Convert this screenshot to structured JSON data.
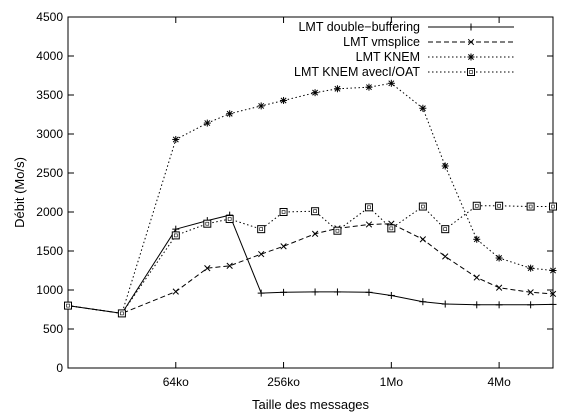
{
  "chart_data": {
    "type": "line",
    "title": "",
    "xlabel": "Taille des messages",
    "ylabel": "Débit (Mo/s)",
    "ylim": [
      0,
      4500
    ],
    "yticks": [
      0,
      500,
      1000,
      1500,
      2000,
      2500,
      3000,
      3500,
      4000,
      4500
    ],
    "x_scale": "log2",
    "x_unit": "ko",
    "xlim": [
      16,
      8192
    ],
    "xticks": [
      {
        "value": 64,
        "label": "64ko"
      },
      {
        "value": 256,
        "label": "256ko"
      },
      {
        "value": 1024,
        "label": "1Mo"
      },
      {
        "value": 4096,
        "label": "4Mo"
      }
    ],
    "x": [
      16,
      32,
      64,
      128,
      256,
      512,
      1024,
      2048,
      4096,
      8192
    ],
    "grid": false,
    "legend_position": "top-right",
    "series": [
      {
        "name": "LMT double−buffering",
        "color": "#000000",
        "dash": "solid",
        "marker": "plus",
        "points": [
          [
            16,
            800
          ],
          [
            32,
            700
          ],
          [
            64,
            1780
          ],
          [
            96,
            1890
          ],
          [
            128,
            1960
          ],
          [
            192,
            960
          ],
          [
            256,
            970
          ],
          [
            384,
            975
          ],
          [
            512,
            975
          ],
          [
            768,
            970
          ],
          [
            1024,
            930
          ],
          [
            1536,
            850
          ],
          [
            2048,
            820
          ],
          [
            3072,
            810
          ],
          [
            4096,
            810
          ],
          [
            6144,
            810
          ],
          [
            8192,
            815
          ]
        ]
      },
      {
        "name": "LMT vmsplice",
        "color": "#000000",
        "dash": "dashed",
        "marker": "x",
        "points": [
          [
            16,
            800
          ],
          [
            32,
            700
          ],
          [
            64,
            980
          ],
          [
            96,
            1280
          ],
          [
            128,
            1310
          ],
          [
            192,
            1460
          ],
          [
            256,
            1560
          ],
          [
            384,
            1720
          ],
          [
            512,
            1790
          ],
          [
            768,
            1840
          ],
          [
            1024,
            1850
          ],
          [
            1536,
            1650
          ],
          [
            2048,
            1430
          ],
          [
            3072,
            1160
          ],
          [
            4096,
            1030
          ],
          [
            6144,
            970
          ],
          [
            8192,
            950
          ]
        ]
      },
      {
        "name": "LMT KNEM",
        "color": "#000000",
        "dash": "dotted",
        "marker": "star",
        "points": [
          [
            16,
            800
          ],
          [
            32,
            700
          ],
          [
            64,
            2930
          ],
          [
            96,
            3140
          ],
          [
            128,
            3260
          ],
          [
            192,
            3360
          ],
          [
            256,
            3430
          ],
          [
            384,
            3530
          ],
          [
            512,
            3580
          ],
          [
            768,
            3600
          ],
          [
            1024,
            3650
          ],
          [
            1536,
            3330
          ],
          [
            2048,
            2590
          ],
          [
            3072,
            1650
          ],
          [
            4096,
            1410
          ],
          [
            6144,
            1280
          ],
          [
            8192,
            1250
          ]
        ]
      },
      {
        "name": "LMT KNEM avecI/OAT",
        "color": "#000000",
        "dash": "dotted",
        "marker": "square",
        "points": [
          [
            16,
            800
          ],
          [
            32,
            700
          ],
          [
            64,
            1700
          ],
          [
            96,
            1850
          ],
          [
            128,
            1910
          ],
          [
            192,
            1780
          ],
          [
            256,
            2000
          ],
          [
            384,
            2010
          ],
          [
            512,
            1760
          ],
          [
            768,
            2060
          ],
          [
            1024,
            1790
          ],
          [
            1536,
            2070
          ],
          [
            2048,
            1780
          ],
          [
            3072,
            2080
          ],
          [
            4096,
            2080
          ],
          [
            6144,
            2070
          ],
          [
            8192,
            2070
          ]
        ]
      }
    ]
  }
}
